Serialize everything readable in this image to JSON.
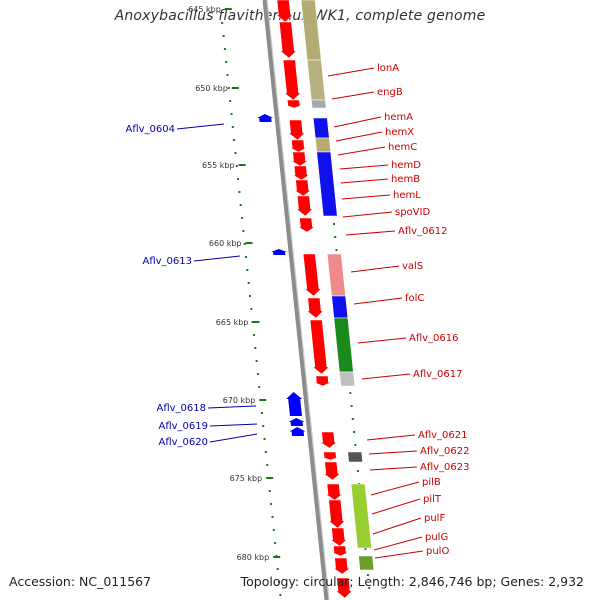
{
  "title": "Anoxybacillus flavithermus WK1, complete genome",
  "footer": {
    "accession": "Accession: NC_011567",
    "meta": "Topology: circular; Length: 2,846,746 bp; Genes: 2,932"
  },
  "colors": {
    "forward_gene": "#ff0000",
    "reverse_gene": "#0000ff",
    "label_forward": "#cc0000",
    "label_reverse": "#0000aa",
    "tick_mark": "#1a7a1a",
    "backbone": "#8c8c8c"
  },
  "kbp_ticks": [
    "645 kbp",
    "650 kbp",
    "655 kbp",
    "660 kbp",
    "665 kbp",
    "670 kbp",
    "675 kbp",
    "680 kbp"
  ],
  "gene_labels_forward": [
    "lonA",
    "engB",
    "hemA",
    "hemX",
    "hemC",
    "hemD",
    "hemB",
    "hemL",
    "spoVID",
    "Aflv_0612",
    "valS",
    "folC",
    "Aflv_0616",
    "Aflv_0617",
    "Aflv_0621",
    "Aflv_0622",
    "Aflv_0623",
    "pilB",
    "pilT",
    "pulF",
    "pulG",
    "pulO"
  ],
  "gene_labels_reverse": [
    "Aflv_0604",
    "Aflv_0613",
    "Aflv_0618",
    "Aflv_0619",
    "Aflv_0620"
  ]
}
